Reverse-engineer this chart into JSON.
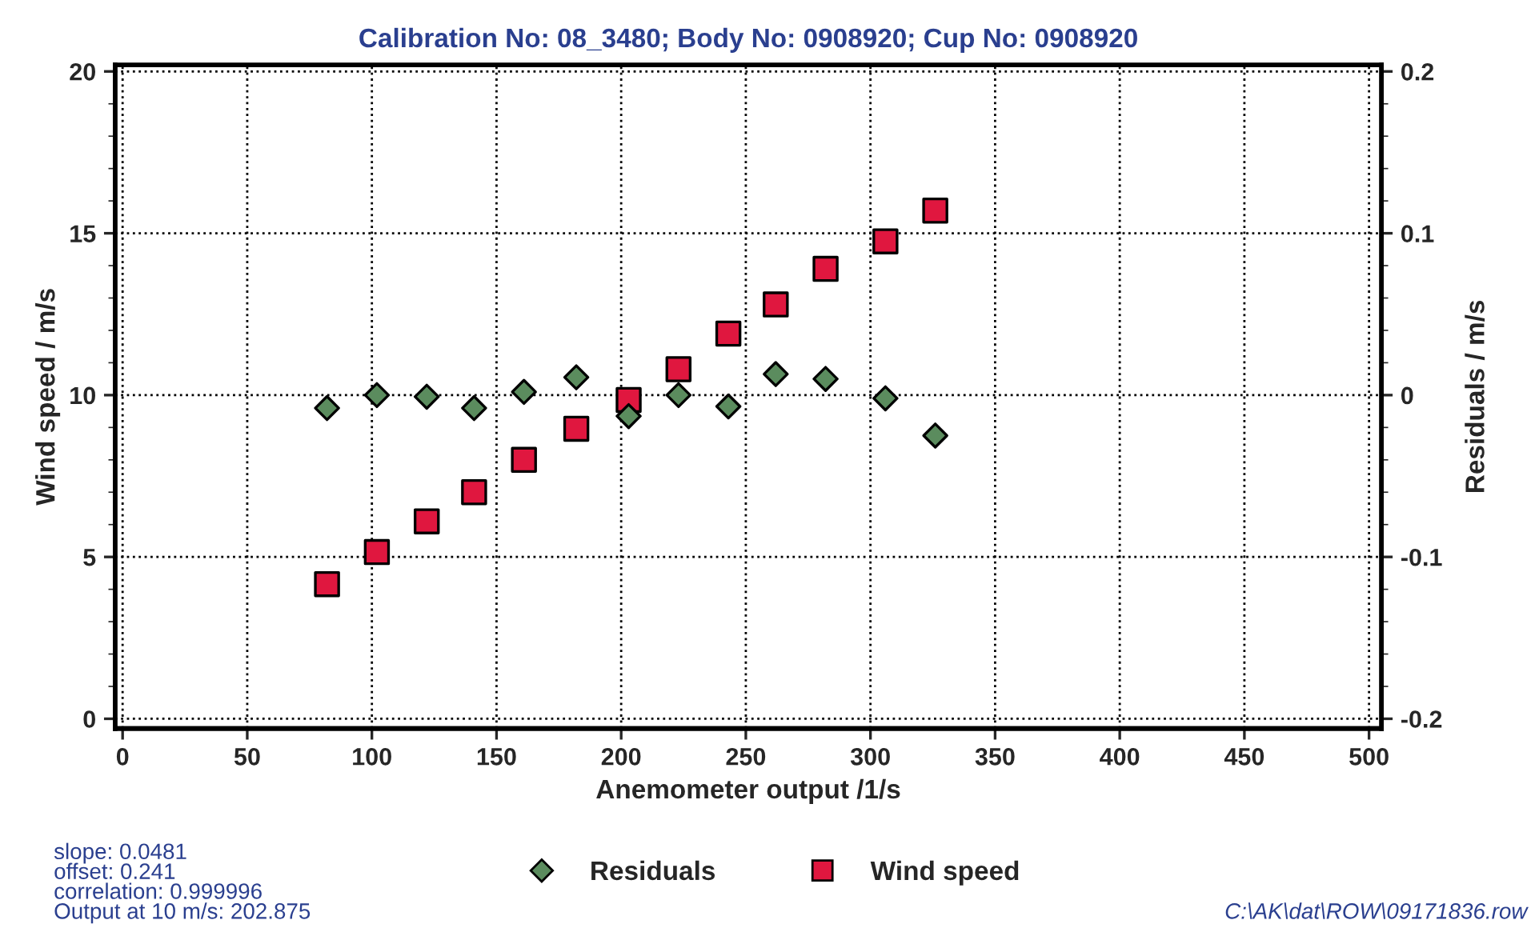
{
  "chart_data": {
    "type": "scatter",
    "title": "Calibration No: 08_3480; Body No: 0908920; Cup No: 0908920",
    "xlabel": "Anemometer output /1/s",
    "ylabel": "Wind speed / m/s",
    "y2label": "Residuals / m/s",
    "xlim": [
      -3,
      505
    ],
    "xticks": [
      0,
      50,
      100,
      150,
      200,
      250,
      300,
      350,
      400,
      450,
      500
    ],
    "ylim": [
      -0.3,
      20.2
    ],
    "yticks": [
      0,
      5,
      10,
      15,
      20
    ],
    "y2lim": [
      -0.206,
      0.204
    ],
    "y2ticks": [
      -0.2,
      -0.1,
      0,
      0.1,
      0.2
    ],
    "grid": true,
    "legend": "bottom",
    "series": [
      {
        "name": "Residuals",
        "color": "#5b8c5e",
        "marker": "diamond",
        "axis": "y2",
        "x": [
          82,
          102,
          122,
          141,
          161,
          182,
          203,
          223,
          243,
          262,
          282,
          306,
          326
        ],
        "values": [
          -0.008,
          0.0,
          -0.001,
          -0.008,
          0.002,
          0.011,
          -0.013,
          0.0,
          -0.007,
          0.013,
          0.01,
          -0.002,
          -0.025
        ]
      },
      {
        "name": "Wind speed",
        "color": "#e0173f",
        "marker": "square",
        "x": [
          82,
          102,
          122,
          141,
          161,
          182,
          203,
          223,
          243,
          262,
          282,
          306,
          326
        ],
        "values": [
          4.16,
          5.15,
          6.1,
          7.0,
          8.0,
          8.96,
          9.85,
          10.8,
          11.9,
          12.8,
          13.9,
          14.75,
          15.7
        ]
      }
    ],
    "annotations": [
      "slope: 0.0481\noffset: 0.241\ncorrelation: 0.999996\nOutput at 10 m/s: 202.875",
      "C:\\AK\\dat\\ROW\\09171836.row"
    ]
  }
}
